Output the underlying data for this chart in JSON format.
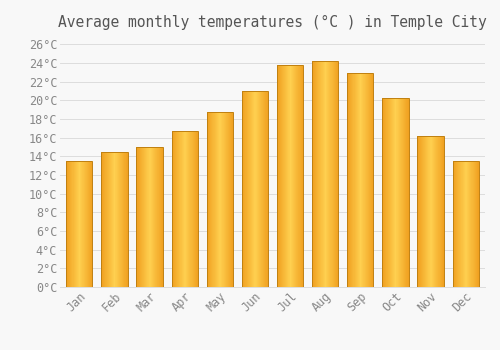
{
  "title": "Average monthly temperatures (°C ) in Temple City",
  "months": [
    "Jan",
    "Feb",
    "Mar",
    "Apr",
    "May",
    "Jun",
    "Jul",
    "Aug",
    "Sep",
    "Oct",
    "Nov",
    "Dec"
  ],
  "temperatures": [
    13.5,
    14.5,
    15.0,
    16.7,
    18.7,
    21.0,
    23.8,
    24.2,
    22.9,
    20.3,
    16.2,
    13.5
  ],
  "bar_color_center": "#FFD050",
  "bar_color_edge": "#F0A020",
  "bar_edge_color": "#C08010",
  "ylim": [
    0,
    27
  ],
  "yticks": [
    0,
    2,
    4,
    6,
    8,
    10,
    12,
    14,
    16,
    18,
    20,
    22,
    24,
    26
  ],
  "background_color": "#f8f8f8",
  "plot_bg_color": "#f8f8f8",
  "grid_color": "#dddddd",
  "tick_label_color": "#888888",
  "title_color": "#555555",
  "title_fontsize": 10.5,
  "tick_fontsize": 8.5,
  "font_family": "monospace"
}
